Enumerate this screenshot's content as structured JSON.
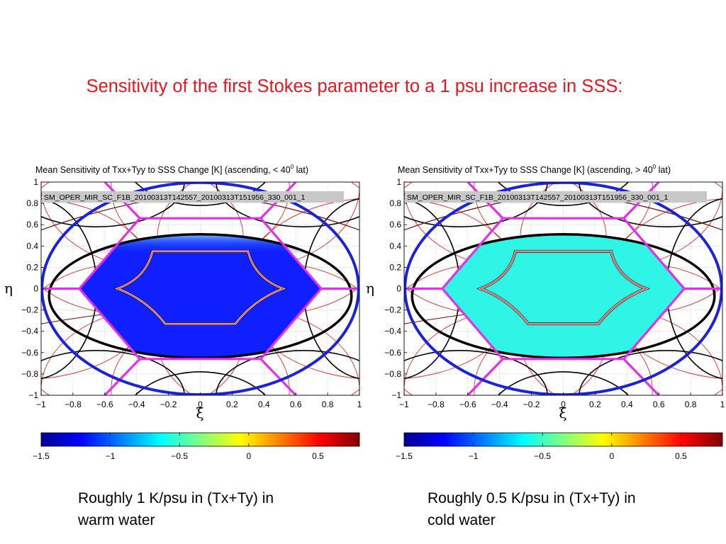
{
  "slide": {
    "title": "Sensitivity of the first Stokes parameter to a 1 psu increase in SSS:"
  },
  "chart_data": [
    {
      "type": "heatmap",
      "title": "Mean Sensitivity of Txx+Tyy to SSS Change [K] (ascending, < 40° lat)",
      "title_main": "Mean Sensitivity of Txx+Tyy to SSS Change [K] (ascending, < 40",
      "title_sup": "0",
      "title_end": " lat)",
      "product_label": "SM_OPER_MIR_SC_F1B_20100313T142557_20100313T151956_330_001_1",
      "xlabel": "ξ",
      "ylabel": "η",
      "xlim": [
        -1,
        1
      ],
      "ylim": [
        -1,
        1
      ],
      "xticks": [
        "−1",
        "−0.8",
        "−0.6",
        "−0.4",
        "−0.2",
        "0",
        "0.2",
        "0.4",
        "0.6",
        "0.8",
        "1"
      ],
      "yticks": [
        "1",
        "0.8",
        "0.6",
        "0.4",
        "0.2",
        "0",
        "−0.2",
        "−0.4",
        "−0.6",
        "−0.8",
        "−1"
      ],
      "grid": true,
      "field_value": -1.25,
      "field_color": "#0f1fff",
      "edge_gradient": true,
      "colorbar": {
        "range": [
          -1.5,
          0.8
        ],
        "ticks": [
          "−1.5",
          "−1",
          "−0.5",
          "0",
          "0.5"
        ],
        "tick_values": [
          -1.5,
          -1,
          -0.5,
          0,
          0.5
        ]
      }
    },
    {
      "type": "heatmap",
      "title": "Mean Sensitivity of Txx+Tyy to SSS Change [K] (ascending, > 40° lat)",
      "title_main": "Mean Sensitivity of Txx+Tyy to SSS Change [K] (ascending, > 40",
      "title_sup": "0",
      "title_end": " lat)",
      "product_label": "SM_OPER_MIR_SC_F1B_20100313T142557_20100313T151956_330_001_1",
      "xlabel": "ξ",
      "ylabel": "η",
      "xlim": [
        -1,
        1
      ],
      "ylim": [
        -1,
        1
      ],
      "xticks": [
        "−1",
        "−0.8",
        "−0.6",
        "−0.4",
        "−0.2",
        "0",
        "0.2",
        "0.4",
        "0.6",
        "0.8",
        "1"
      ],
      "yticks": [
        "1",
        "0.8",
        "0.6",
        "0.4",
        "0.2",
        "0",
        "−0.2",
        "−0.4",
        "−0.6",
        "−0.8",
        "−1"
      ],
      "grid": true,
      "field_value": -0.5,
      "field_color": "#2ef5e6",
      "edge_gradient": false,
      "colorbar": {
        "range": [
          -1.5,
          0.8
        ],
        "ticks": [
          "−1.5",
          "−1",
          "−0.5",
          "0",
          "0.5"
        ],
        "tick_values": [
          -1.5,
          -1,
          -0.5,
          0,
          0.5
        ]
      }
    }
  ],
  "captions": {
    "left_line1": "Roughly 1 K/psu in (Tx+Ty) in",
    "left_line2": "warm water",
    "right_line1": "Roughly 0.5 K/psu in (Tx+Ty) in",
    "right_line2": "cold water"
  },
  "colors": {
    "title": "#e6171e",
    "hexagon": "#e62ee6",
    "ellipse_outer": "#1a23d9",
    "ellipse_inner": "#000000",
    "aliases": "#e8140f",
    "grid": "#c0c0c0"
  }
}
